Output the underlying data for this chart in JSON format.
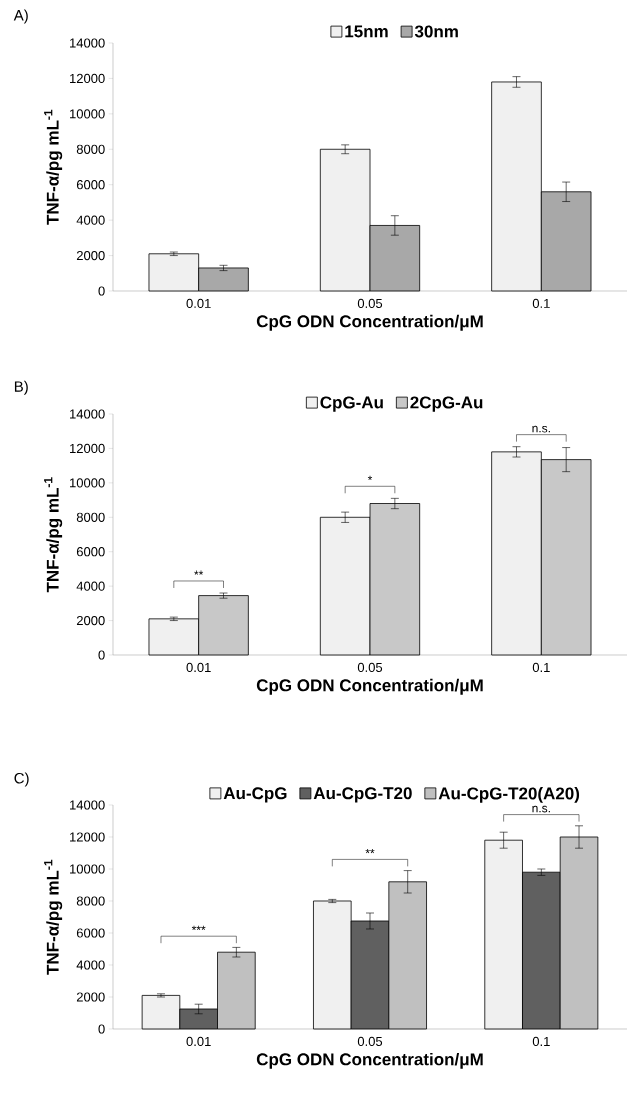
{
  "chart_data": [
    {
      "type": "bar",
      "title": "A)",
      "categories": [
        "0.01",
        "0.05",
        "0.1"
      ],
      "xlabel": "CpG ODN Concentration/μM",
      "ylabel": "TNF-α/pg mL$^{-1}$",
      "ylim": [
        0,
        14000
      ],
      "yticks": [
        0,
        2000,
        4000,
        6000,
        8000,
        10000,
        12000,
        14000
      ],
      "legend": "top",
      "series": [
        {
          "name": "15nm",
          "color": "#f0f0f0",
          "values": [
            2100,
            8000,
            11800
          ],
          "errors": [
            100,
            250,
            300
          ]
        },
        {
          "name": "30nm",
          "color": "#a8a8a8",
          "values": [
            1300,
            3700,
            5600
          ],
          "errors": [
            150,
            550,
            550
          ]
        }
      ]
    },
    {
      "type": "bar",
      "title": "B)",
      "categories": [
        "0.01",
        "0.05",
        "0.1"
      ],
      "xlabel": "CpG ODN Concentration/μM",
      "ylabel": "TNF-α/pg mL$^{-1}$",
      "ylim": [
        0,
        14000
      ],
      "yticks": [
        0,
        2000,
        4000,
        6000,
        8000,
        10000,
        12000,
        14000
      ],
      "legend": "top",
      "series": [
        {
          "name": "CpG-Au",
          "color": "#f0f0f0",
          "values": [
            2100,
            8000,
            11800
          ],
          "errors": [
            100,
            300,
            300
          ]
        },
        {
          "name": "2CpG-Au",
          "color": "#c8c8c8",
          "values": [
            3450,
            8800,
            11350
          ],
          "errors": [
            150,
            300,
            700
          ]
        }
      ],
      "annotations": [
        "**",
        "*",
        "n.s."
      ]
    },
    {
      "type": "bar",
      "title": "C)",
      "categories": [
        "0.01",
        "0.05",
        "0.1"
      ],
      "xlabel": "CpG ODN Concentration/μM",
      "ylabel": "TNF-α/pg mL$^{-1}$",
      "ylim": [
        0,
        14000
      ],
      "yticks": [
        0,
        2000,
        4000,
        6000,
        8000,
        10000,
        12000,
        14000
      ],
      "legend": "top",
      "series": [
        {
          "name": "Au-CpG",
          "color": "#f0f0f0",
          "values": [
            2100,
            8000,
            11800
          ],
          "errors": [
            100,
            100,
            500
          ]
        },
        {
          "name": "Au-CpG-T20",
          "color": "#606060",
          "values": [
            1250,
            6750,
            9800
          ],
          "errors": [
            300,
            500,
            200
          ]
        },
        {
          "name": "Au-CpG-T20(A20)",
          "color": "#c0c0c0",
          "values": [
            4800,
            9200,
            12000
          ],
          "errors": [
            300,
            700,
            700
          ]
        }
      ],
      "annotations": [
        "***",
        "**",
        "n.s."
      ]
    }
  ]
}
